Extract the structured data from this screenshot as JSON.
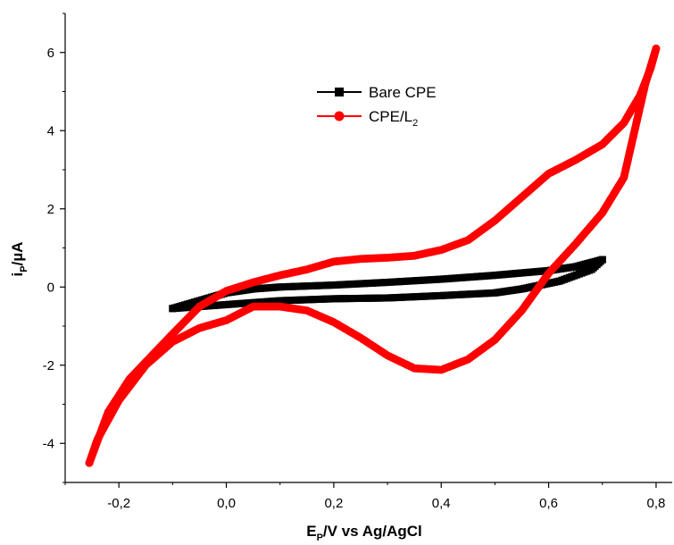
{
  "chart_data": {
    "type": "line",
    "title": "",
    "xlabel": {
      "main": "E",
      "sub": "P",
      "rest": "/V vs Ag/AgCl"
    },
    "ylabel": {
      "main": "i",
      "sub": "P",
      "rest": "/µA"
    },
    "xlim": [
      -0.3,
      0.83
    ],
    "ylim": [
      -5.0,
      7.0
    ],
    "x_ticks": [
      -0.2,
      0.0,
      0.2,
      0.4,
      0.6,
      0.8
    ],
    "x_tick_labels": [
      "-0,2",
      "0,0",
      "0,2",
      "0,4",
      "0,6",
      "0,8"
    ],
    "y_ticks": [
      -4,
      -2,
      0,
      2,
      4,
      6
    ],
    "y_tick_labels": [
      "-4",
      "-2",
      "0",
      "2",
      "4",
      "6"
    ],
    "legend": {
      "placement": "top-center"
    },
    "series": [
      {
        "name": "Bare CPE",
        "legend_label": {
          "main": "Bare CPE",
          "sub": ""
        },
        "color": "#000000",
        "marker": "square",
        "forward": [
          [
            -0.1,
            -0.55
          ],
          [
            -0.05,
            -0.35
          ],
          [
            0.0,
            -0.15
          ],
          [
            0.05,
            -0.05
          ],
          [
            0.1,
            0.0
          ],
          [
            0.2,
            0.05
          ],
          [
            0.3,
            0.12
          ],
          [
            0.4,
            0.2
          ],
          [
            0.5,
            0.3
          ],
          [
            0.6,
            0.42
          ],
          [
            0.65,
            0.52
          ],
          [
            0.7,
            0.7
          ]
        ],
        "reverse": [
          [
            0.7,
            0.7
          ],
          [
            0.68,
            0.45
          ],
          [
            0.62,
            0.15
          ],
          [
            0.55,
            -0.05
          ],
          [
            0.5,
            -0.15
          ],
          [
            0.4,
            -0.22
          ],
          [
            0.3,
            -0.28
          ],
          [
            0.2,
            -0.3
          ],
          [
            0.1,
            -0.35
          ],
          [
            0.0,
            -0.45
          ],
          [
            -0.05,
            -0.5
          ],
          [
            -0.1,
            -0.55
          ]
        ]
      },
      {
        "name": "CPE/L2",
        "legend_label": {
          "main": "CPE/L",
          "sub": "2"
        },
        "color": "#ff0000",
        "marker": "circle",
        "forward": [
          [
            -0.255,
            -4.5
          ],
          [
            -0.22,
            -3.2
          ],
          [
            -0.18,
            -2.35
          ],
          [
            -0.1,
            -1.2
          ],
          [
            -0.05,
            -0.5
          ],
          [
            0.0,
            -0.1
          ],
          [
            0.05,
            0.12
          ],
          [
            0.1,
            0.3
          ],
          [
            0.15,
            0.45
          ],
          [
            0.2,
            0.65
          ],
          [
            0.25,
            0.72
          ],
          [
            0.3,
            0.75
          ],
          [
            0.35,
            0.8
          ],
          [
            0.4,
            0.95
          ],
          [
            0.45,
            1.2
          ],
          [
            0.5,
            1.7
          ],
          [
            0.55,
            2.3
          ],
          [
            0.6,
            2.9
          ],
          [
            0.65,
            3.25
          ],
          [
            0.7,
            3.65
          ],
          [
            0.74,
            4.2
          ],
          [
            0.77,
            4.9
          ],
          [
            0.79,
            5.6
          ],
          [
            0.8,
            6.1
          ]
        ],
        "reverse": [
          [
            0.8,
            6.1
          ],
          [
            0.78,
            5.2
          ],
          [
            0.76,
            4.0
          ],
          [
            0.74,
            2.8
          ],
          [
            0.7,
            1.9
          ],
          [
            0.65,
            1.1
          ],
          [
            0.6,
            0.35
          ],
          [
            0.55,
            -0.6
          ],
          [
            0.5,
            -1.35
          ],
          [
            0.45,
            -1.85
          ],
          [
            0.4,
            -2.12
          ],
          [
            0.35,
            -2.08
          ],
          [
            0.3,
            -1.75
          ],
          [
            0.25,
            -1.3
          ],
          [
            0.2,
            -0.9
          ],
          [
            0.15,
            -0.6
          ],
          [
            0.1,
            -0.5
          ],
          [
            0.05,
            -0.5
          ],
          [
            0.0,
            -0.85
          ],
          [
            -0.05,
            -1.05
          ],
          [
            -0.1,
            -1.4
          ],
          [
            -0.15,
            -2.0
          ],
          [
            -0.2,
            -2.9
          ],
          [
            -0.24,
            -3.9
          ],
          [
            -0.255,
            -4.5
          ]
        ]
      }
    ]
  }
}
